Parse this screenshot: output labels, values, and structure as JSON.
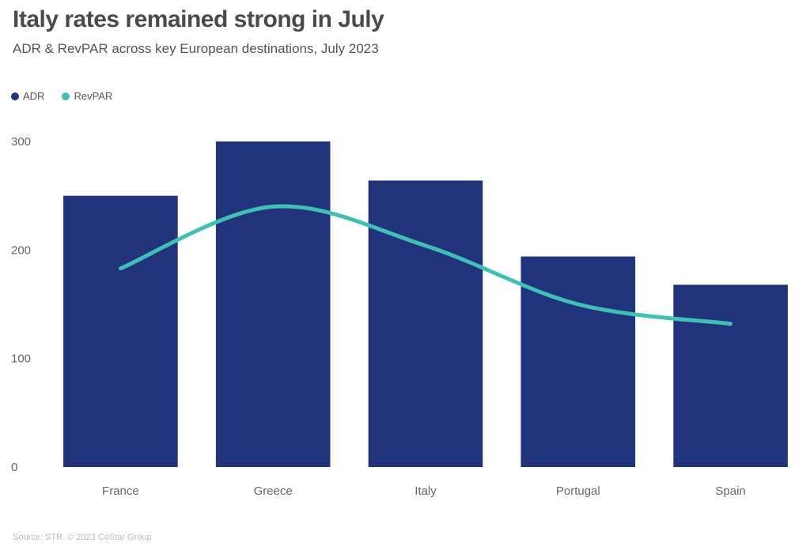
{
  "chart_data": {
    "type": "bar",
    "title": "Italy rates remained strong in July",
    "subtitle": "ADR & RevPAR across key European destinations, July 2023",
    "categories": [
      "France",
      "Greece",
      "Italy",
      "Portugal",
      "Spain"
    ],
    "series": [
      {
        "name": "ADR",
        "type": "bar",
        "color": "#21337a",
        "values": [
          250,
          300,
          264,
          194,
          168
        ]
      },
      {
        "name": "RevPAR",
        "type": "line",
        "color": "#3cc1b4",
        "values": [
          183,
          240,
          204,
          150,
          132
        ]
      }
    ],
    "yticks": [
      0,
      100,
      200,
      300
    ],
    "ylim": [
      0,
      300
    ],
    "xlabel": "",
    "ylabel": "",
    "legend_position": "top-left",
    "source": "Source: STR. © 2023 CoStar Group"
  }
}
